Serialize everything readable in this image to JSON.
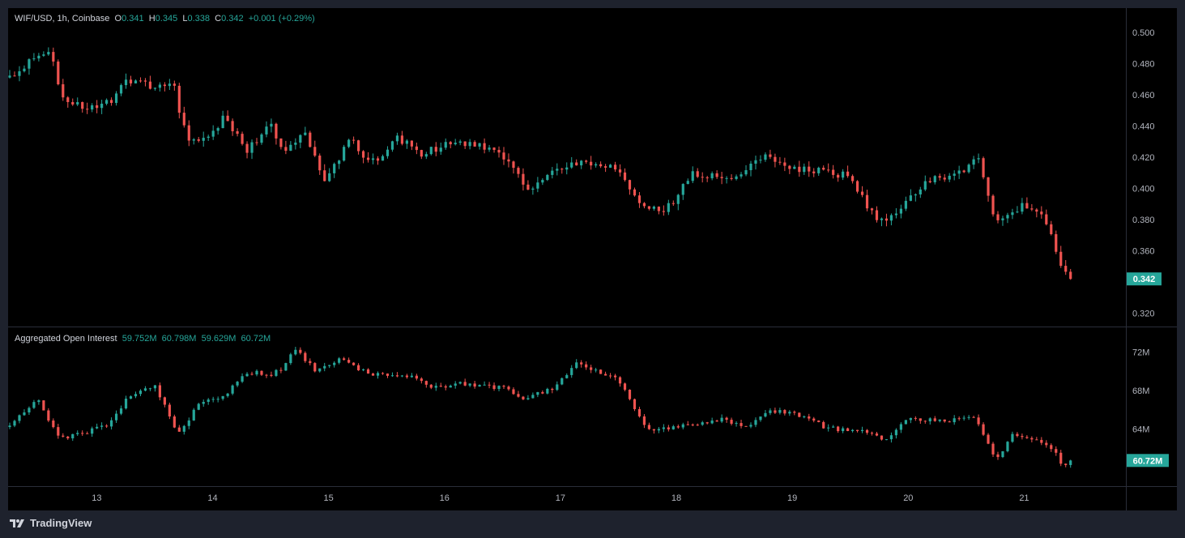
{
  "price_legend": {
    "symbol": "WIF/USD, 1h, Coinbase",
    "o_label": "O",
    "o": "0.341",
    "h_label": "H",
    "h": "0.345",
    "l_label": "L",
    "l": "0.338",
    "c_label": "C",
    "c": "0.342",
    "change": "+0.001 (+0.29%)"
  },
  "oi_legend": {
    "title": "Aggregated Open Interest",
    "values": [
      "59.752M",
      "60.798M",
      "59.629M",
      "60.72M"
    ]
  },
  "price_badge": "0.342",
  "oi_badge": "60.72M",
  "branding": "TradingView",
  "colors": {
    "up": "#26a69a",
    "down": "#ef5350",
    "background": "#000000",
    "frame": "#1e222d"
  },
  "chart_data": [
    {
      "type": "candlestick",
      "title": "WIF/USD, 1h, Coinbase",
      "x_ticks": [
        "13",
        "14",
        "15",
        "16",
        "17",
        "18",
        "19",
        "20",
        "21"
      ],
      "y_ticks": [
        "0.500",
        "0.480",
        "0.460",
        "0.440",
        "0.420",
        "0.400",
        "0.380",
        "0.360",
        "0.320"
      ],
      "ylim": [
        0.3115,
        0.5155
      ],
      "last_value": 0.342,
      "path_points": [
        [
          12.25,
          0.471
        ],
        [
          12.5,
          0.485
        ],
        [
          12.6,
          0.49
        ],
        [
          12.7,
          0.458
        ],
        [
          13.0,
          0.45
        ],
        [
          13.15,
          0.458
        ],
        [
          13.25,
          0.47
        ],
        [
          13.5,
          0.465
        ],
        [
          13.65,
          0.47
        ],
        [
          13.78,
          0.43
        ],
        [
          13.9,
          0.43
        ],
        [
          14.1,
          0.445
        ],
        [
          14.3,
          0.425
        ],
        [
          14.5,
          0.44
        ],
        [
          14.6,
          0.425
        ],
        [
          14.8,
          0.435
        ],
        [
          14.95,
          0.405
        ],
        [
          15.2,
          0.432
        ],
        [
          15.35,
          0.415
        ],
        [
          15.6,
          0.432
        ],
        [
          15.8,
          0.422
        ],
        [
          16.1,
          0.43
        ],
        [
          16.45,
          0.425
        ],
        [
          16.75,
          0.398
        ],
        [
          16.95,
          0.412
        ],
        [
          17.2,
          0.416
        ],
        [
          17.5,
          0.413
        ],
        [
          17.7,
          0.39
        ],
        [
          17.9,
          0.385
        ],
        [
          18.15,
          0.41
        ],
        [
          18.5,
          0.405
        ],
        [
          18.75,
          0.42
        ],
        [
          19.05,
          0.413
        ],
        [
          19.5,
          0.408
        ],
        [
          19.72,
          0.38
        ],
        [
          19.85,
          0.382
        ],
        [
          20.15,
          0.405
        ],
        [
          20.45,
          0.41
        ],
        [
          20.6,
          0.422
        ],
        [
          20.75,
          0.38
        ],
        [
          21.0,
          0.39
        ],
        [
          21.2,
          0.378
        ],
        [
          21.3,
          0.352
        ],
        [
          21.4,
          0.342
        ]
      ]
    },
    {
      "type": "candlestick",
      "title": "Aggregated Open Interest",
      "units": "M",
      "y_ticks": [
        "72M",
        "68M",
        "64M"
      ],
      "ylim": [
        58.05,
        74.65
      ],
      "last_value": 60.72,
      "path_points": [
        [
          12.25,
          64.2
        ],
        [
          12.5,
          67.2
        ],
        [
          12.6,
          64.5
        ],
        [
          12.7,
          63.0
        ],
        [
          12.95,
          63.8
        ],
        [
          13.1,
          64.5
        ],
        [
          13.25,
          67.0
        ],
        [
          13.5,
          68.5
        ],
        [
          13.6,
          66.0
        ],
        [
          13.7,
          63.3
        ],
        [
          13.9,
          67.0
        ],
        [
          14.1,
          67.5
        ],
        [
          14.3,
          70.0
        ],
        [
          14.5,
          69.5
        ],
        [
          14.6,
          70.3
        ],
        [
          14.7,
          72.5
        ],
        [
          14.9,
          70.0
        ],
        [
          15.1,
          71.2
        ],
        [
          15.35,
          69.8
        ],
        [
          15.7,
          69.4
        ],
        [
          15.9,
          68.2
        ],
        [
          16.1,
          68.7
        ],
        [
          16.5,
          68.3
        ],
        [
          16.7,
          67.2
        ],
        [
          16.95,
          68.4
        ],
        [
          17.15,
          71.0
        ],
        [
          17.5,
          69.0
        ],
        [
          17.75,
          64.0
        ],
        [
          18.1,
          64.3
        ],
        [
          18.4,
          65.0
        ],
        [
          18.6,
          64.2
        ],
        [
          18.8,
          66.0
        ],
        [
          19.1,
          65.3
        ],
        [
          19.3,
          64.1
        ],
        [
          19.6,
          63.8
        ],
        [
          19.8,
          63.0
        ],
        [
          20.0,
          65.0
        ],
        [
          20.3,
          64.8
        ],
        [
          20.55,
          65.3
        ],
        [
          20.65,
          63.5
        ],
        [
          20.75,
          60.6
        ],
        [
          20.9,
          63.5
        ],
        [
          21.1,
          62.8
        ],
        [
          21.25,
          61.8
        ],
        [
          21.35,
          60.0
        ],
        [
          21.4,
          60.72
        ]
      ]
    }
  ]
}
